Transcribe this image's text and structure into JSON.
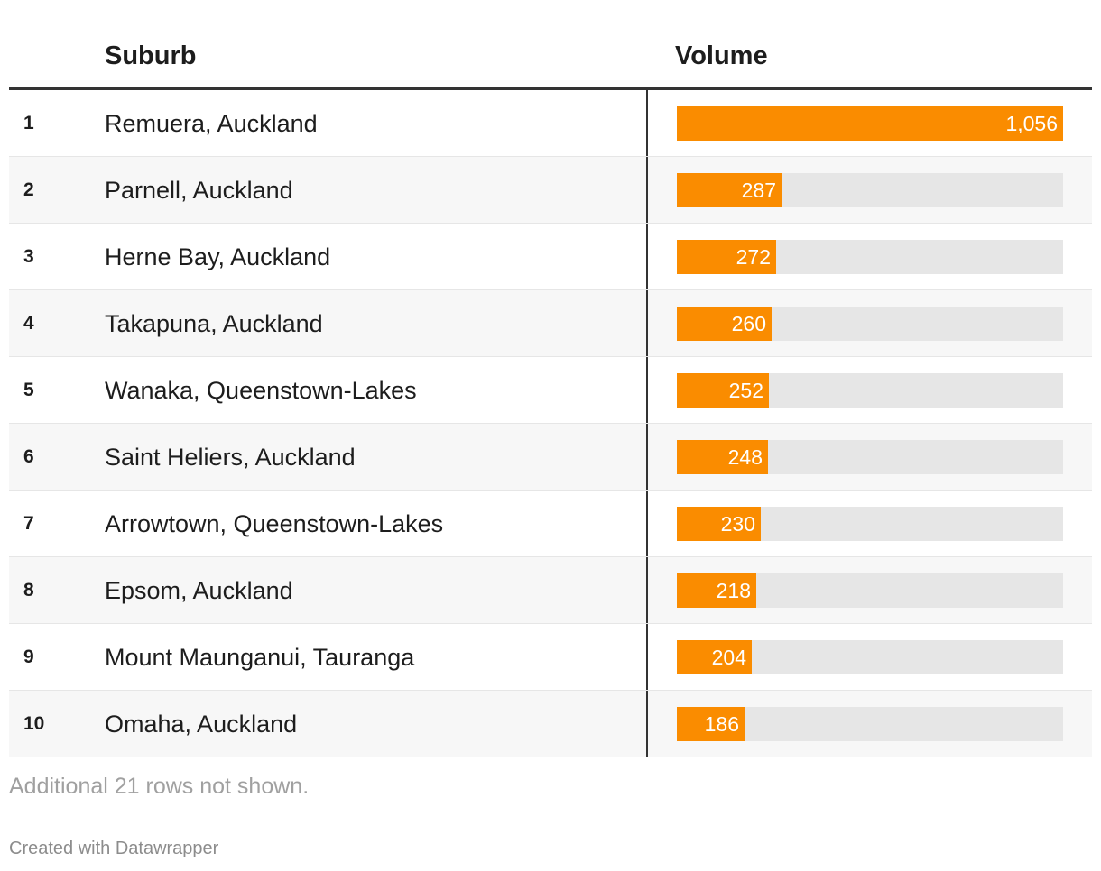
{
  "colors": {
    "bar": "#fa8c00",
    "track": "#e6e6e6",
    "stripe": "#f7f7f7"
  },
  "chart_data": {
    "type": "table",
    "columns": [
      "",
      "Suburb",
      "Volume"
    ],
    "max": 1056,
    "rows": [
      {
        "rank": "1",
        "suburb": "Remuera, Auckland",
        "volume": 1056,
        "volume_label": "1,056"
      },
      {
        "rank": "2",
        "suburb": "Parnell, Auckland",
        "volume": 287,
        "volume_label": "287"
      },
      {
        "rank": "3",
        "suburb": "Herne Bay, Auckland",
        "volume": 272,
        "volume_label": "272"
      },
      {
        "rank": "4",
        "suburb": "Takapuna, Auckland",
        "volume": 260,
        "volume_label": "260"
      },
      {
        "rank": "5",
        "suburb": "Wanaka, Queenstown-Lakes",
        "volume": 252,
        "volume_label": "252"
      },
      {
        "rank": "6",
        "suburb": "Saint Heliers, Auckland",
        "volume": 248,
        "volume_label": "248"
      },
      {
        "rank": "7",
        "suburb": "Arrowtown, Queenstown-Lakes",
        "volume": 230,
        "volume_label": "230"
      },
      {
        "rank": "8",
        "suburb": "Epsom, Auckland",
        "volume": 218,
        "volume_label": "218"
      },
      {
        "rank": "9",
        "suburb": "Mount Maunganui, Tauranga",
        "volume": 204,
        "volume_label": "204"
      },
      {
        "rank": "10",
        "suburb": "Omaha, Auckland",
        "volume": 186,
        "volume_label": "186"
      }
    ],
    "note": "Additional 21 rows not shown.",
    "credit": "Created with Datawrapper"
  }
}
